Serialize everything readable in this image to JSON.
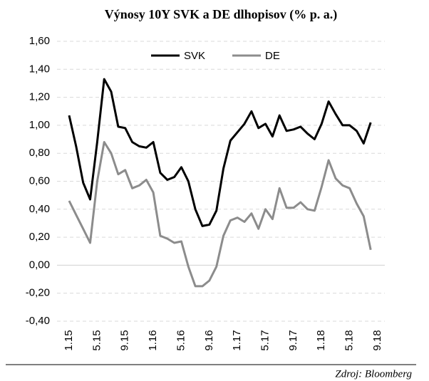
{
  "chart_data": {
    "type": "line",
    "title": "Výnosy 10Y SVK a DE dlhopisov (% p. a.)",
    "source": "Zdroj: Bloomberg",
    "categories": [
      "1.15",
      null,
      null,
      null,
      "5.15",
      null,
      null,
      null,
      "9.15",
      null,
      null,
      null,
      "1.16",
      null,
      null,
      null,
      "5.16",
      null,
      null,
      null,
      "9.16",
      null,
      null,
      null,
      "1.17",
      null,
      null,
      null,
      "5.17",
      null,
      null,
      null,
      "9.17",
      null,
      null,
      null,
      "1.18",
      null,
      null,
      null,
      "5.18",
      null,
      null,
      null,
      "9.18"
    ],
    "series": [
      {
        "name": "SVK",
        "color": "#000000",
        "values": [
          1.07,
          0.85,
          0.59,
          0.47,
          0.88,
          1.33,
          1.24,
          0.99,
          0.98,
          0.88,
          0.85,
          0.84,
          0.88,
          0.66,
          0.61,
          0.63,
          0.7,
          0.6,
          0.4,
          0.28,
          0.29,
          0.39,
          0.69,
          0.89,
          0.95,
          1.01,
          1.1,
          0.98,
          1.01,
          0.92,
          1.07,
          0.96,
          0.97,
          0.99,
          0.94,
          0.9,
          1.01,
          1.17,
          1.08,
          1.0,
          1.0,
          0.96,
          0.87,
          1.02,
          null
        ]
      },
      {
        "name": "DE",
        "color": "#8c8c8c",
        "values": [
          0.46,
          0.36,
          0.26,
          0.16,
          0.6,
          0.88,
          0.8,
          0.65,
          0.68,
          0.55,
          0.57,
          0.61,
          0.52,
          0.21,
          0.19,
          0.16,
          0.17,
          -0.01,
          -0.15,
          -0.15,
          -0.11,
          -0.01,
          0.21,
          0.32,
          0.34,
          0.31,
          0.37,
          0.26,
          0.4,
          0.33,
          0.55,
          0.41,
          0.41,
          0.45,
          0.4,
          0.39,
          0.56,
          0.75,
          0.62,
          0.57,
          0.55,
          0.44,
          0.35,
          0.11,
          null
        ]
      }
    ],
    "ylim": [
      -0.4,
      1.6
    ],
    "yticks": [
      {
        "value": -0.4,
        "label": "-0,40"
      },
      {
        "value": -0.2,
        "label": "-0,20"
      },
      {
        "value": 0,
        "label": "0,00"
      },
      {
        "value": 0.2,
        "label": "0,20"
      },
      {
        "value": 0.4,
        "label": "0,40"
      },
      {
        "value": 0.6,
        "label": "0,60"
      },
      {
        "value": 0.8,
        "label": "0,80"
      },
      {
        "value": 1.0,
        "label": "1,00"
      },
      {
        "value": 1.2,
        "label": "1,20"
      },
      {
        "value": 1.4,
        "label": "1,40"
      },
      {
        "value": 1.6,
        "label": "1,60"
      }
    ],
    "grid": true,
    "legend": "top"
  }
}
